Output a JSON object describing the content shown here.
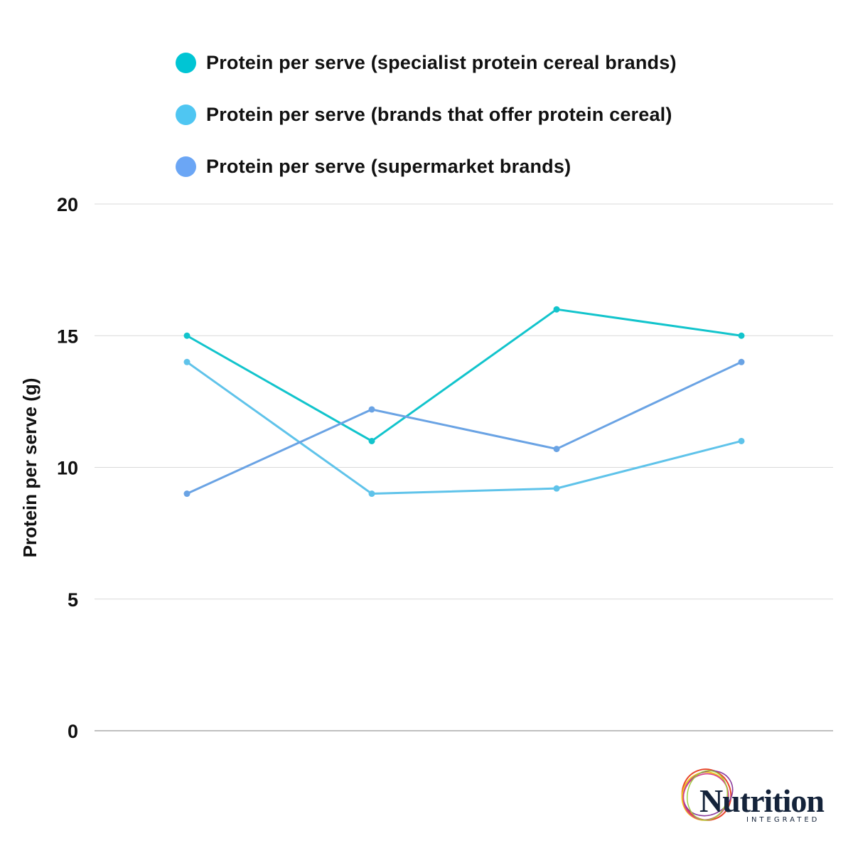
{
  "chart_data": {
    "type": "line",
    "title": "",
    "xlabel": "",
    "ylabel": "Protein per serve (g)",
    "ylim": [
      0,
      20
    ],
    "yticks": [
      0,
      5,
      10,
      15,
      20
    ],
    "x": [
      1,
      2,
      3,
      4
    ],
    "grid": true,
    "legend_position": "top",
    "series": [
      {
        "name": "Protein per serve (specialist protein cereal brands)",
        "color": "#12c4cc",
        "values": [
          15,
          11,
          16,
          15
        ]
      },
      {
        "name": "Protein per serve (brands that offer protein cereal)",
        "color": "#5fc3ea",
        "values": [
          14,
          9,
          9.2,
          11
        ]
      },
      {
        "name": "Protein per serve (supermarket brands)",
        "color": "#6aa3e4",
        "values": [
          9,
          12.2,
          10.7,
          14
        ]
      }
    ]
  },
  "legend_colors": [
    "#00c5d4",
    "#4fc6f2",
    "#6ba6f5"
  ],
  "logo": {
    "word": "Nutrition",
    "sub": "INTEGRATED"
  }
}
